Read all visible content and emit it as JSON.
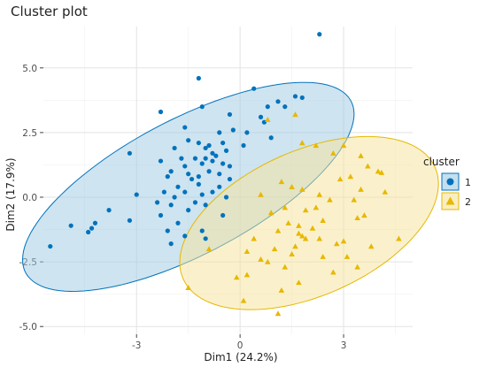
{
  "chart_data": {
    "type": "scatter",
    "title": "Cluster plot",
    "xlabel": "Dim1 (24.2%)",
    "ylabel": "Dim2 (17.9%)",
    "xlim": [
      -5.7,
      5.0
    ],
    "ylim": [
      -5.3,
      6.6
    ],
    "x_ticks": [
      -3,
      0,
      3
    ],
    "x_tick_labels": [
      "-3",
      "0",
      "3"
    ],
    "y_ticks": [
      -5,
      -2.5,
      0,
      2.5,
      5
    ],
    "y_tick_labels": [
      "-5.0",
      "-2.5",
      "0.0",
      "2.5",
      "5.0"
    ],
    "grid": true,
    "legend": {
      "title": "cluster",
      "placement": "right",
      "entries": [
        "1",
        "2"
      ]
    },
    "series": [
      {
        "name": "1",
        "marker": "circle",
        "color": "#0072BD",
        "fill": "#9ecae1",
        "ellipse": {
          "cx": -1.5,
          "cy": 0.4,
          "rx": 5.8,
          "ry": 2.4,
          "angle_deg": 38
        },
        "points": [
          [
            2.3,
            6.3
          ],
          [
            -1.2,
            4.6
          ],
          [
            0.4,
            4.2
          ],
          [
            1.6,
            3.9
          ],
          [
            1.8,
            3.85
          ],
          [
            1.1,
            3.7
          ],
          [
            -1.1,
            3.5
          ],
          [
            0.8,
            3.5
          ],
          [
            1.3,
            3.5
          ],
          [
            -2.3,
            3.3
          ],
          [
            -0.3,
            3.2
          ],
          [
            0.6,
            3.1
          ],
          [
            0.7,
            2.9
          ],
          [
            -1.6,
            2.7
          ],
          [
            -0.2,
            2.6
          ],
          [
            0.2,
            2.5
          ],
          [
            -0.6,
            2.5
          ],
          [
            0.9,
            2.3
          ],
          [
            -1.5,
            2.2
          ],
          [
            -1.2,
            2.1
          ],
          [
            -0.5,
            2.1
          ],
          [
            -0.9,
            2.0
          ],
          [
            0.1,
            2.0
          ],
          [
            -1.0,
            1.9
          ],
          [
            -1.9,
            1.9
          ],
          [
            -0.4,
            1.8
          ],
          [
            -3.2,
            1.7
          ],
          [
            -0.8,
            1.7
          ],
          [
            -0.7,
            1.6
          ],
          [
            -1.0,
            1.5
          ],
          [
            -1.7,
            1.5
          ],
          [
            -1.3,
            1.5
          ],
          [
            -0.8,
            1.4
          ],
          [
            -2.3,
            1.4
          ],
          [
            -0.5,
            1.3
          ],
          [
            -1.1,
            1.3
          ],
          [
            -1.6,
            1.2
          ],
          [
            -0.3,
            1.2
          ],
          [
            -2.0,
            1.0
          ],
          [
            -0.9,
            1.0
          ],
          [
            -1.5,
            0.9
          ],
          [
            -0.6,
            0.9
          ],
          [
            -1.2,
            0.8
          ],
          [
            -2.1,
            0.8
          ],
          [
            -1.4,
            0.7
          ],
          [
            -0.3,
            0.7
          ],
          [
            -1.2,
            0.5
          ],
          [
            -0.6,
            0.4
          ],
          [
            -1.8,
            0.4
          ],
          [
            -2.2,
            0.2
          ],
          [
            -1.6,
            0.2
          ],
          [
            -0.8,
            0.2
          ],
          [
            -3.0,
            0.1
          ],
          [
            -1.1,
            0.1
          ],
          [
            -1.9,
            0.0
          ],
          [
            -0.4,
            0.0
          ],
          [
            -2.4,
            -0.2
          ],
          [
            -1.3,
            -0.2
          ],
          [
            -2.0,
            -0.3
          ],
          [
            -1.0,
            -0.3
          ],
          [
            -3.8,
            -0.5
          ],
          [
            -1.5,
            -0.5
          ],
          [
            -2.3,
            -0.7
          ],
          [
            -0.5,
            -0.7
          ],
          [
            -3.2,
            -0.9
          ],
          [
            -1.8,
            -1.0
          ],
          [
            -4.2,
            -1.0
          ],
          [
            -4.9,
            -1.1
          ],
          [
            -4.3,
            -1.2
          ],
          [
            -4.4,
            -1.35
          ],
          [
            -1.1,
            -1.3
          ],
          [
            -2.1,
            -1.3
          ],
          [
            -1.6,
            -1.5
          ],
          [
            -1.0,
            -1.6
          ],
          [
            -2.0,
            -1.8
          ],
          [
            -5.5,
            -1.9
          ]
        ]
      },
      {
        "name": "2",
        "marker": "triangle",
        "color": "#E7B800",
        "fill": "#f5e39a",
        "ellipse": {
          "cx": 2.0,
          "cy": -1.0,
          "rx": 4.3,
          "ry": 2.6,
          "angle_deg": 38
        },
        "points": [
          [
            1.6,
            3.2
          ],
          [
            0.8,
            3.0
          ],
          [
            1.8,
            2.1
          ],
          [
            2.2,
            2.0
          ],
          [
            3.0,
            2.0
          ],
          [
            2.7,
            1.7
          ],
          [
            3.5,
            1.6
          ],
          [
            3.7,
            1.2
          ],
          [
            4.0,
            1.0
          ],
          [
            4.1,
            0.95
          ],
          [
            3.2,
            0.8
          ],
          [
            2.9,
            0.7
          ],
          [
            1.2,
            0.6
          ],
          [
            1.5,
            0.4
          ],
          [
            1.8,
            0.3
          ],
          [
            3.5,
            0.3
          ],
          [
            4.2,
            0.2
          ],
          [
            0.6,
            0.1
          ],
          [
            2.3,
            0.1
          ],
          [
            2.6,
            -0.1
          ],
          [
            3.3,
            -0.1
          ],
          [
            1.3,
            -0.4
          ],
          [
            2.2,
            -0.4
          ],
          [
            1.9,
            -0.5
          ],
          [
            0.9,
            -0.6
          ],
          [
            3.6,
            -0.7
          ],
          [
            3.4,
            -0.8
          ],
          [
            2.4,
            -0.9
          ],
          [
            1.4,
            -1.0
          ],
          [
            1.7,
            -1.1
          ],
          [
            2.1,
            -1.2
          ],
          [
            1.1,
            -1.3
          ],
          [
            1.7,
            -1.4
          ],
          [
            1.8,
            -1.5
          ],
          [
            1.9,
            -1.6
          ],
          [
            2.3,
            -1.6
          ],
          [
            4.6,
            -1.6
          ],
          [
            3.0,
            -1.7
          ],
          [
            0.4,
            -1.6
          ],
          [
            2.8,
            -1.8
          ],
          [
            1.6,
            -1.9
          ],
          [
            3.8,
            -1.9
          ],
          [
            -0.9,
            -2.0
          ],
          [
            0.2,
            -2.1
          ],
          [
            1.0,
            -2.0
          ],
          [
            1.5,
            -2.2
          ],
          [
            2.4,
            -2.3
          ],
          [
            3.1,
            -2.3
          ],
          [
            0.6,
            -2.4
          ],
          [
            0.8,
            -2.5
          ],
          [
            1.3,
            -2.7
          ],
          [
            3.4,
            -2.7
          ],
          [
            2.7,
            -2.9
          ],
          [
            0.2,
            -3.0
          ],
          [
            -0.1,
            -3.1
          ],
          [
            1.7,
            -3.3
          ],
          [
            -1.5,
            -3.5
          ],
          [
            1.2,
            -3.6
          ],
          [
            0.1,
            -4.0
          ],
          [
            1.1,
            -4.5
          ]
        ]
      }
    ]
  }
}
